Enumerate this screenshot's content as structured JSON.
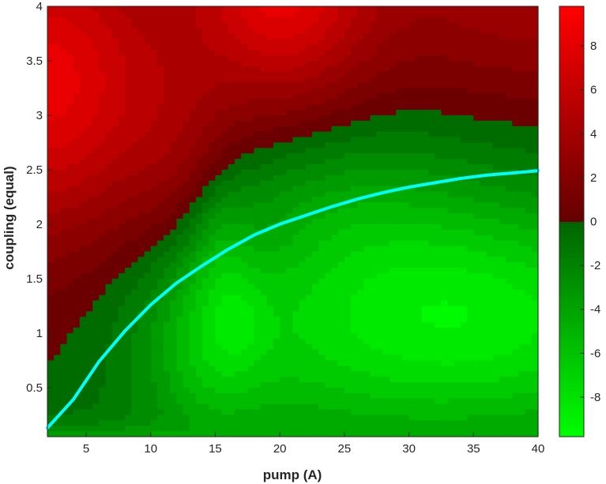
{
  "chart_data": {
    "type": "heatmap",
    "title": "",
    "xlabel": "pump (A)",
    "ylabel": "coupling (equal)",
    "xlim": [
      2,
      40
    ],
    "ylim": [
      0.05,
      4
    ],
    "x_ticks": [
      5,
      10,
      15,
      20,
      25,
      30,
      35,
      40
    ],
    "y_ticks": [
      0.5,
      1,
      1.5,
      2,
      2.5,
      3,
      3.5,
      4
    ],
    "colorbar": {
      "range": [
        -9.8,
        9.8
      ],
      "ticks": [
        -8,
        -6,
        -4,
        -2,
        0,
        2,
        4,
        6,
        8
      ],
      "levels": [
        -10,
        -9,
        -8,
        -7,
        -6,
        -5,
        -4,
        -3,
        -2,
        -1,
        0,
        1,
        2,
        3,
        4,
        5,
        6,
        7,
        8,
        9,
        10
      ],
      "colors": {
        "negative_min": "#00ff00",
        "negative_near_zero": "#006400",
        "positive_near_zero": "#640000",
        "positive_max": "#ff0000"
      }
    },
    "surface_note": "Filled contour of a value over pump (A) x coupling (equal); positive (red) at low pump / high coupling, negative (green) at high pump / low coupling.",
    "series": [
      {
        "color": "#00ffff",
        "x": [
          2,
          4,
          6,
          8,
          10,
          12,
          14,
          16,
          18,
          20,
          22,
          24,
          26,
          28,
          30,
          32,
          34,
          36,
          38,
          40
        ],
        "y": [
          0.13,
          0.39,
          0.74,
          1.02,
          1.26,
          1.46,
          1.62,
          1.77,
          1.9,
          2.0,
          2.08,
          2.16,
          2.23,
          2.29,
          2.34,
          2.38,
          2.42,
          2.45,
          2.47,
          2.49
        ]
      }
    ]
  }
}
